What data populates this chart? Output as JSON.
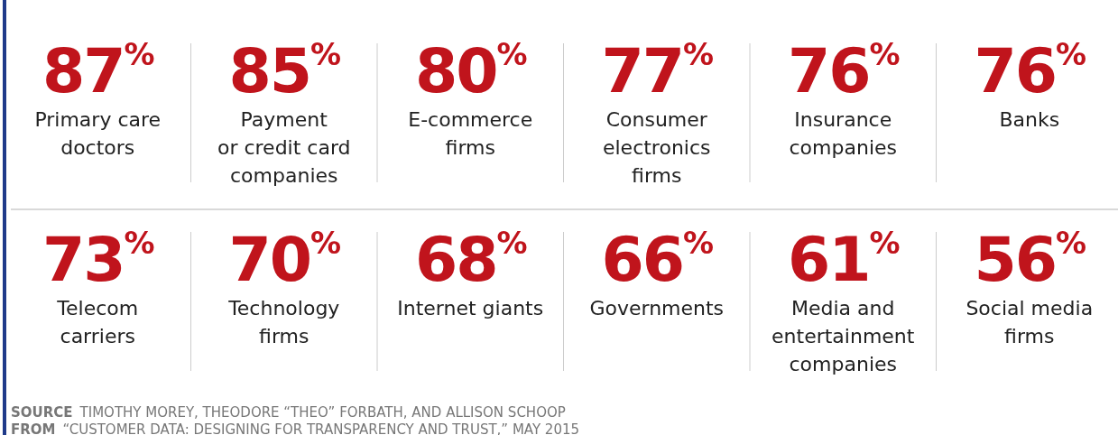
{
  "chart_data": {
    "type": "other",
    "color": "#c0141c",
    "categories": [
      "Primary care\ndoctors",
      "Payment\nor credit card\ncompanies",
      "E-commerce\nfirms",
      "Consumer\nelectronics\nfirms",
      "Insurance\ncompanies",
      "Banks",
      "Telecom\ncarriers",
      "Technology\nfirms",
      "Internet giants",
      "Governments",
      "Media and\nentertainment\ncompanies",
      "Social media\nfirms"
    ],
    "values": [
      87,
      85,
      80,
      77,
      76,
      76,
      73,
      70,
      68,
      66,
      61,
      56
    ],
    "value_labels": [
      "87$^{%}$",
      "85$^{%}$",
      "80$^{%}$",
      "77$^{%}$",
      "76$^{%}$",
      "76$^{%}$",
      "73$^{%}$",
      "70$^{%}$",
      "68$^{%}$",
      "66$^{%}$",
      "61$^{%}$",
      "56$^{%}$"
    ],
    "annotations": [
      "SOURCE TIMOTHY MOREY, THEODORE “THEO” FORBATH, AND ALLISON SCHOOP",
      "FROM “CUSTOMER DATA: DESIGNING FOR TRANSPARENCY AND TRUST,” MAY 2015"
    ]
  }
}
